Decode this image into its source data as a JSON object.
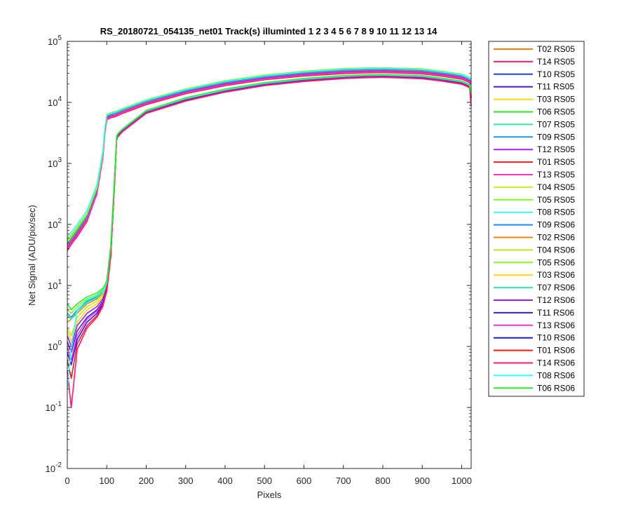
{
  "chart_data": {
    "type": "line",
    "title": "RS_20180721_054135_net01  Track(s) illuminted 1   2   3   4   5   6   7   8   9   10   11   12  13  14",
    "xlabel": "Pixels",
    "ylabel": "Net Signal (ADU/pix/sec)",
    "xlim": [
      0,
      1024
    ],
    "ylim": [
      0.01,
      100000
    ],
    "yscale": "log",
    "x_ticks": [
      0,
      100,
      200,
      300,
      400,
      500,
      600,
      700,
      800,
      900,
      1000
    ],
    "y_ticks": [
      {
        "value": 0.01,
        "base": "10",
        "exp": "-2"
      },
      {
        "value": 0.1,
        "base": "10",
        "exp": "-1"
      },
      {
        "value": 1,
        "base": "10",
        "exp": "0"
      },
      {
        "value": 10,
        "base": "10",
        "exp": "1"
      },
      {
        "value": 100,
        "base": "10",
        "exp": "2"
      },
      {
        "value": 1000,
        "base": "10",
        "exp": "3"
      },
      {
        "value": 10000,
        "base": "10",
        "exp": "4"
      },
      {
        "value": 100000,
        "base": "10",
        "exp": "5"
      }
    ],
    "grid": false,
    "legend_position": "outside-right",
    "x": [
      0,
      10,
      25,
      50,
      75,
      90,
      95,
      100,
      110,
      120,
      125,
      128,
      140,
      200,
      300,
      400,
      500,
      600,
      700,
      750,
      800,
      900,
      950,
      1000,
      1015,
      1020,
      1024
    ],
    "series": [
      {
        "name": "T02 RS05",
        "color": "#ff7f00",
        "values": [
          45,
          55,
          75,
          130,
          360,
          1400,
          3400,
          5800,
          6200,
          6500,
          6700,
          6800,
          7300,
          10000,
          15000,
          20500,
          25500,
          29500,
          32500,
          33300,
          33800,
          32200,
          29500,
          26200,
          24000,
          23000,
          22000
        ]
      },
      {
        "name": "T14 RS05",
        "color": "#ff1a66",
        "values": [
          38,
          48,
          65,
          115,
          320,
          1250,
          3100,
          5300,
          5700,
          5900,
          6100,
          6200,
          6700,
          9300,
          14000,
          19000,
          23700,
          27300,
          30000,
          30700,
          31100,
          29700,
          27200,
          24200,
          22100,
          21200,
          20300
        ]
      },
      {
        "name": "T10 RS05",
        "color": "#1a3dff",
        "values": [
          40,
          50,
          68,
          120,
          330,
          1300,
          3200,
          5500,
          5900,
          6100,
          6300,
          6400,
          6900,
          9600,
          14600,
          19800,
          24600,
          28400,
          31300,
          32000,
          32400,
          30900,
          28300,
          25200,
          23000,
          22100,
          21100
        ]
      },
      {
        "name": "T11 RS05",
        "color": "#4b1aff",
        "values": [
          41,
          51,
          70,
          122,
          335,
          1320,
          3250,
          5550,
          5950,
          6150,
          6350,
          6450,
          6950,
          9700,
          14700,
          20000,
          24800,
          28700,
          31600,
          32300,
          32700,
          31200,
          28600,
          25500,
          23200,
          22300,
          21300
        ]
      },
      {
        "name": "T03 RS05",
        "color": "#ffdc00",
        "values": [
          50,
          60,
          82,
          140,
          380,
          1450,
          3500,
          6000,
          6400,
          6700,
          6900,
          7000,
          7600,
          10500,
          15800,
          21500,
          26700,
          30900,
          34000,
          34800,
          35300,
          33700,
          30900,
          27500,
          25100,
          24100,
          23000
        ]
      },
      {
        "name": "T06 RS05",
        "color": "#28e628",
        "values": [
          55,
          66,
          90,
          150,
          400,
          1500,
          3600,
          6300,
          6700,
          7000,
          7200,
          7300,
          7900,
          10900,
          16500,
          22400,
          27800,
          32200,
          35500,
          36300,
          36800,
          35100,
          32200,
          28700,
          26200,
          25100,
          24000
        ]
      },
      {
        "name": "T07 RS05",
        "color": "#33e6b0",
        "values": [
          52,
          63,
          85,
          145,
          390,
          1470,
          3550,
          6100,
          6500,
          6800,
          7000,
          7100,
          7700,
          10700,
          16100,
          21900,
          27200,
          31500,
          34700,
          35500,
          36000,
          34300,
          31500,
          28000,
          25600,
          24500,
          23400
        ]
      },
      {
        "name": "T09 RS05",
        "color": "#1a9ee6",
        "values": [
          48,
          58,
          80,
          138,
          370,
          1420,
          3450,
          5900,
          6300,
          6600,
          6800,
          6900,
          7500,
          10400,
          15600,
          21200,
          26300,
          30500,
          33600,
          34400,
          34900,
          33300,
          30500,
          27200,
          24800,
          23800,
          22700
        ]
      },
      {
        "name": "T12 RS05",
        "color": "#b31aff",
        "values": [
          42,
          52,
          71,
          125,
          340,
          1330,
          3280,
          5600,
          6000,
          6200,
          6400,
          6500,
          7000,
          9800,
          14800,
          20100,
          25000,
          28900,
          31800,
          32500,
          32900,
          31400,
          28800,
          25700,
          23400,
          22500,
          21500
        ]
      },
      {
        "name": "T01 RS05",
        "color": "#ff1a1a",
        "values": [
          37,
          47,
          63,
          112,
          315,
          1230,
          3050,
          5200,
          5600,
          5800,
          6000,
          6100,
          6600,
          9200,
          13900,
          18800,
          23500,
          27000,
          29700,
          30400,
          30800,
          29400,
          26900,
          24000,
          21900,
          21000,
          20100
        ]
      },
      {
        "name": "T13 RS05",
        "color": "#ff33cc",
        "values": [
          39,
          49,
          66,
          118,
          325,
          1270,
          3150,
          5400,
          5800,
          6000,
          6200,
          6300,
          6800,
          9500,
          14300,
          19400,
          24100,
          27800,
          30600,
          31300,
          31700,
          30200,
          27700,
          24700,
          22500,
          21600,
          20700
        ]
      },
      {
        "name": "T04 RS05",
        "color": "#c8f01a",
        "values": [
          53,
          64,
          87,
          147,
          395,
          1480,
          3570,
          6150,
          6550,
          6850,
          7050,
          7150,
          7750,
          10800,
          16300,
          22100,
          27500,
          31800,
          35100,
          35900,
          36400,
          34700,
          31800,
          28400,
          25900,
          24800,
          23700
        ]
      },
      {
        "name": "T05 RS05",
        "color": "#7dff1a",
        "values": [
          56,
          67,
          92,
          152,
          405,
          1510,
          3620,
          6350,
          6750,
          7050,
          7250,
          7350,
          7950,
          11000,
          16600,
          22600,
          28000,
          32500,
          35800,
          36600,
          37100,
          35400,
          32500,
          29000,
          26400,
          25300,
          24200
        ]
      },
      {
        "name": "T08 RS05",
        "color": "#33ffff",
        "values": [
          62,
          75,
          100,
          170,
          450,
          1600,
          3700,
          6200,
          6600,
          6900,
          7100,
          7200,
          7800,
          10800,
          16200,
          22000,
          27300,
          31600,
          34900,
          35700,
          36200,
          34500,
          31700,
          28300,
          25800,
          24700,
          23600
        ]
      },
      {
        "name": "T09 RS06",
        "color": "#1a8cff",
        "values": [
          3.5,
          3.0,
          4.0,
          5.5,
          6.5,
          8.0,
          9.0,
          11,
          40,
          600,
          2700,
          3000,
          3600,
          7200,
          11500,
          16000,
          20500,
          24000,
          26700,
          27500,
          27900,
          26600,
          24300,
          21600,
          19700,
          18900,
          13000
        ]
      },
      {
        "name": "T02 RS06",
        "color": "#ff7f00",
        "values": [
          2.5,
          2.8,
          3.5,
          5.0,
          6.0,
          7.5,
          9.0,
          12,
          45,
          650,
          2600,
          2900,
          3500,
          7000,
          11200,
          15600,
          19900,
          23400,
          26000,
          26800,
          27200,
          25900,
          23700,
          21100,
          19200,
          18400,
          12500
        ]
      },
      {
        "name": "T04 RS06",
        "color": "#c8e61a",
        "values": [
          2.0,
          1.5,
          3.0,
          4.5,
          5.5,
          7.0,
          8.5,
          10,
          38,
          580,
          2650,
          2950,
          3550,
          7100,
          11400,
          15800,
          20200,
          23700,
          26400,
          27200,
          27600,
          26300,
          24000,
          21400,
          19500,
          18700,
          12700
        ]
      },
      {
        "name": "T05 RS06",
        "color": "#7dff1a",
        "values": [
          4.0,
          3.5,
          4.5,
          6.0,
          7.0,
          8.5,
          9.5,
          11,
          41,
          610,
          2720,
          3020,
          3620,
          7250,
          11600,
          16100,
          20600,
          24200,
          26900,
          27700,
          28100,
          26800,
          24500,
          21800,
          19900,
          19100,
          13200
        ]
      },
      {
        "name": "T03 RS06",
        "color": "#ffd21a",
        "values": [
          1.8,
          1.2,
          2.5,
          4.0,
          5.0,
          6.5,
          8.0,
          10,
          37,
          570,
          2640,
          2940,
          3540,
          7050,
          11300,
          15700,
          20100,
          23600,
          26200,
          27000,
          27400,
          26100,
          23900,
          21200,
          19400,
          18600,
          12600
        ]
      },
      {
        "name": "T07 RS06",
        "color": "#33e6b0",
        "values": [
          3.2,
          2.8,
          3.8,
          5.3,
          6.3,
          7.8,
          9.2,
          11,
          40,
          600,
          2700,
          3000,
          3600,
          7200,
          11500,
          16000,
          20500,
          24000,
          26700,
          27500,
          27900,
          26600,
          24300,
          21600,
          19700,
          18900,
          13000
        ]
      },
      {
        "name": "T12 RS06",
        "color": "#a01aff",
        "values": [
          1.5,
          1.0,
          2.2,
          3.5,
          4.5,
          6.0,
          7.5,
          9.5,
          35,
          540,
          2550,
          2850,
          3450,
          6900,
          11000,
          15300,
          19600,
          23000,
          25600,
          26400,
          26800,
          25500,
          23300,
          20800,
          18900,
          18100,
          12300
        ]
      },
      {
        "name": "T11 RS06",
        "color": "#3d1aff",
        "values": [
          1.2,
          0.8,
          1.8,
          3.0,
          4.0,
          5.5,
          7.0,
          9.0,
          33,
          520,
          2500,
          2800,
          3400,
          6800,
          10900,
          15100,
          19400,
          22800,
          25300,
          26100,
          26500,
          25200,
          23100,
          20600,
          18700,
          17900,
          12100
        ]
      },
      {
        "name": "T13 RS06",
        "color": "#ff33cc",
        "values": [
          1.0,
          0.6,
          1.5,
          2.8,
          3.8,
          5.2,
          6.8,
          8.8,
          32,
          510,
          2480,
          2780,
          3380,
          6750,
          10800,
          15000,
          19200,
          22600,
          25100,
          25900,
          26300,
          25000,
          22900,
          20400,
          18600,
          17800,
          11900
        ]
      },
      {
        "name": "T10 RS06",
        "color": "#1a1aff",
        "values": [
          0.8,
          0.5,
          1.3,
          2.5,
          3.5,
          5.0,
          6.5,
          8.5,
          31,
          500,
          2460,
          2760,
          3360,
          6700,
          10700,
          14900,
          19100,
          22400,
          24900,
          25700,
          26100,
          24800,
          22700,
          20200,
          18400,
          17600,
          11700
        ]
      },
      {
        "name": "T01 RS06",
        "color": "#ff1414",
        "values": [
          0.6,
          0.3,
          1.1,
          2.2,
          3.2,
          4.8,
          6.2,
          8.2,
          30,
          490,
          2440,
          2740,
          3340,
          6650,
          10600,
          14800,
          18900,
          22200,
          24700,
          25500,
          25900,
          24600,
          22500,
          20000,
          18200,
          17400,
          9000
        ]
      },
      {
        "name": "T14 RS06",
        "color": "#ff1a66",
        "values": [
          0.4,
          0.1,
          0.9,
          2.0,
          3.0,
          4.5,
          6.0,
          8.0,
          29,
          480,
          2420,
          2720,
          3320,
          6600,
          10500,
          14700,
          18800,
          22000,
          24500,
          25300,
          25700,
          24400,
          22300,
          19800,
          18000,
          17200,
          8500
        ]
      },
      {
        "name": "T08 RS06",
        "color": "#33ffff",
        "values": [
          0.2,
          1.0,
          4.0,
          5.8,
          6.8,
          8.2,
          9.4,
          11,
          42,
          620,
          2750,
          3050,
          3650,
          7300,
          11700,
          16200,
          20800,
          24400,
          27100,
          27900,
          28300,
          27000,
          24700,
          22000,
          20000,
          19200,
          13400
        ]
      },
      {
        "name": "T06 RS06",
        "color": "#28f028",
        "values": [
          5.0,
          4.0,
          5.0,
          6.5,
          7.5,
          9.0,
          10,
          12,
          43,
          640,
          2780,
          3080,
          3680,
          7400,
          11900,
          16500,
          21100,
          24700,
          27500,
          28300,
          28700,
          27400,
          25000,
          22300,
          20300,
          19500,
          13600
        ]
      }
    ]
  }
}
